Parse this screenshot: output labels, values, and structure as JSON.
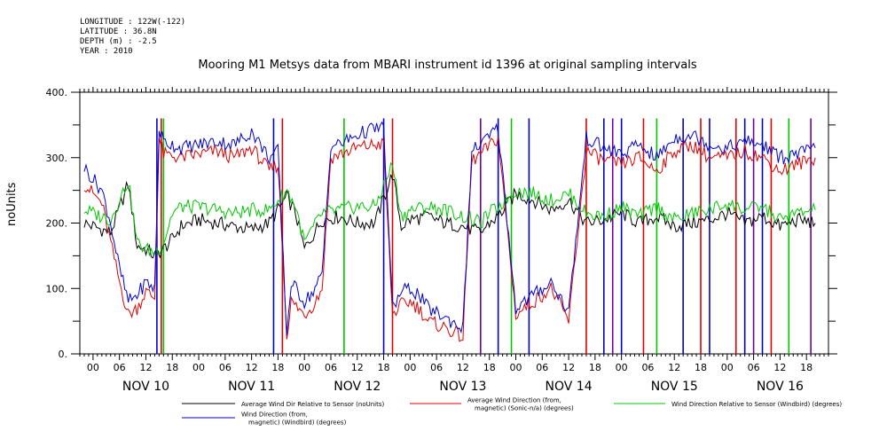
{
  "header": {
    "lines": [
      "LONGITUDE : 122W(-122)",
      "LATITUDE : 36.8N",
      "DEPTH (m) : -2.5",
      "YEAR : 2010"
    ]
  },
  "chart_data": {
    "type": "line",
    "title": "Mooring M1 Metsys data from MBARI instrument id 1396 at original sampling intervals",
    "ylabel": "noUnits",
    "xlabel": "",
    "ylim": [
      0,
      400
    ],
    "yticks": [
      "0.",
      "100.",
      "200.",
      "300.",
      "400."
    ],
    "xlim_hours": [
      -3,
      167
    ],
    "hour_tick_labels": [
      "00",
      "06",
      "12",
      "18"
    ],
    "date_labels": [
      "NOV 10",
      "NOV 11",
      "NOV 12",
      "NOV 13",
      "NOV 14",
      "NOV 15",
      "NOV 16"
    ],
    "grid": false,
    "series": [
      {
        "name": "Average Wind Dir Relative to Sensor (noUnits)",
        "color": "#000000",
        "x": [
          -2,
          2,
          4,
          8,
          10,
          12,
          14,
          16,
          18,
          20,
          22,
          24,
          28,
          32,
          36,
          40,
          44,
          46,
          48,
          52,
          56,
          60,
          64,
          68,
          70,
          72,
          76,
          80,
          84,
          88,
          90,
          92,
          96,
          100,
          104,
          108,
          112,
          116,
          120,
          124,
          128,
          132,
          136,
          140,
          144,
          148,
          152,
          156,
          160,
          164
        ],
        "y": [
          200,
          190,
          185,
          260,
          165,
          160,
          150,
          160,
          175,
          195,
          200,
          205,
          200,
          195,
          190,
          200,
          240,
          215,
          160,
          205,
          210,
          200,
          200,
          275,
          195,
          205,
          210,
          200,
          195,
          185,
          200,
          210,
          245,
          235,
          220,
          235,
          200,
          205,
          215,
          200,
          210,
          195,
          200,
          205,
          215,
          200,
          210,
          195,
          205,
          200
        ]
      },
      {
        "name": "Average Wind Direction (from, magnetic) (Sonic-n/a) (degrees)",
        "color": "#e00000",
        "x": [
          -2,
          2,
          4,
          6,
          8,
          10,
          12,
          14,
          15,
          16,
          20,
          24,
          28,
          32,
          36,
          40,
          42,
          44,
          45,
          48,
          50,
          52,
          54,
          56,
          60,
          64,
          66,
          68,
          70,
          72,
          74,
          76,
          80,
          84,
          86,
          88,
          92,
          96,
          100,
          104,
          108,
          112,
          116,
          120,
          124,
          128,
          132,
          136,
          140,
          144,
          148,
          152,
          156,
          160,
          164
        ],
        "y": [
          260,
          230,
          170,
          110,
          60,
          70,
          95,
          85,
          330,
          305,
          300,
          305,
          310,
          300,
          315,
          280,
          290,
          30,
          80,
          60,
          75,
          100,
          300,
          305,
          315,
          320,
          320,
          60,
          75,
          80,
          70,
          50,
          40,
          25,
          295,
          305,
          330,
          60,
          80,
          100,
          50,
          310,
          295,
          290,
          300,
          280,
          310,
          320,
          300,
          300,
          310,
          300,
          280,
          290,
          300
        ]
      },
      {
        "name": "Wind Direction Relative to Sensor (Windbird) (degrees)",
        "color": "#00c800",
        "x": [
          -2,
          2,
          4,
          8,
          10,
          12,
          14,
          16,
          18,
          20,
          24,
          28,
          32,
          36,
          40,
          44,
          46,
          48,
          52,
          56,
          60,
          64,
          68,
          70,
          72,
          76,
          80,
          84,
          88,
          90,
          92,
          96,
          100,
          104,
          108,
          112,
          116,
          120,
          124,
          128,
          132,
          136,
          140,
          144,
          148,
          152,
          156,
          160,
          164
        ],
        "y": [
          220,
          210,
          205,
          265,
          170,
          160,
          155,
          170,
          215,
          225,
          225,
          220,
          215,
          220,
          220,
          250,
          225,
          170,
          215,
          220,
          225,
          225,
          290,
          210,
          220,
          225,
          220,
          210,
          200,
          215,
          225,
          250,
          245,
          235,
          245,
          215,
          210,
          225,
          210,
          225,
          205,
          215,
          220,
          230,
          220,
          225,
          205,
          215,
          220
        ]
      },
      {
        "name": "Wind Direction (from, magnetic) (Windbird) (degrees)",
        "color": "#0000d0",
        "x": [
          -2,
          2,
          4,
          6,
          8,
          10,
          12,
          14,
          15,
          16,
          20,
          24,
          28,
          32,
          36,
          40,
          42,
          44,
          45,
          48,
          50,
          52,
          54,
          56,
          60,
          64,
          66,
          68,
          70,
          72,
          74,
          76,
          80,
          84,
          86,
          88,
          92,
          96,
          100,
          104,
          108,
          112,
          116,
          120,
          124,
          128,
          132,
          136,
          140,
          144,
          148,
          152,
          156,
          160,
          164
        ],
        "y": [
          285,
          250,
          200,
          130,
          80,
          90,
          110,
          100,
          345,
          325,
          315,
          320,
          325,
          320,
          340,
          300,
          310,
          30,
          110,
          80,
          95,
          120,
          320,
          320,
          335,
          345,
          345,
          70,
          95,
          100,
          90,
          70,
          55,
          40,
          310,
          320,
          345,
          70,
          90,
          110,
          65,
          330,
          315,
          305,
          320,
          300,
          330,
          335,
          320,
          315,
          325,
          320,
          300,
          305,
          315
        ]
      }
    ],
    "spikes": [
      {
        "hour": 14.5,
        "color": "#0000d0"
      },
      {
        "hour": 15.5,
        "color": "#e00000"
      },
      {
        "hour": 16,
        "color": "#00c800"
      },
      {
        "hour": 41,
        "color": "#0000d0"
      },
      {
        "hour": 43,
        "color": "#e00000"
      },
      {
        "hour": 57,
        "color": "#00c800"
      },
      {
        "hour": 66,
        "color": "#0000d0"
      },
      {
        "hour": 68,
        "color": "#e00000"
      },
      {
        "hour": 88,
        "color": "#7000a0"
      },
      {
        "hour": 92,
        "color": "#0000d0"
      },
      {
        "hour": 95,
        "color": "#00c800"
      },
      {
        "hour": 99,
        "color": "#0000d0"
      },
      {
        "hour": 112,
        "color": "#e00000"
      },
      {
        "hour": 116,
        "color": "#0000d0"
      },
      {
        "hour": 118,
        "color": "#7000a0"
      },
      {
        "hour": 120,
        "color": "#0000d0"
      },
      {
        "hour": 125,
        "color": "#e00000"
      },
      {
        "hour": 128,
        "color": "#00c800"
      },
      {
        "hour": 134,
        "color": "#0000d0"
      },
      {
        "hour": 138,
        "color": "#e00000"
      },
      {
        "hour": 140,
        "color": "#0000d0"
      },
      {
        "hour": 146,
        "color": "#e00000"
      },
      {
        "hour": 148,
        "color": "#0000d0"
      },
      {
        "hour": 150,
        "color": "#7000a0"
      },
      {
        "hour": 152,
        "color": "#0000d0"
      },
      {
        "hour": 154,
        "color": "#e00000"
      },
      {
        "hour": 158,
        "color": "#00c800"
      },
      {
        "hour": 163,
        "color": "#7000a0"
      }
    ],
    "legend": {
      "placement": "bottom"
    }
  }
}
